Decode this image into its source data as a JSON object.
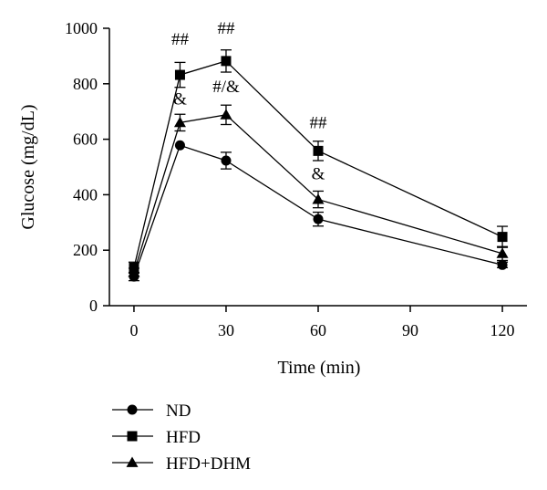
{
  "chart_data": {
    "type": "line",
    "title": "",
    "xlabel": "Time (min)",
    "ylabel": "Glucose (mg/dL)",
    "xlim": [
      -8,
      128
    ],
    "ylim": [
      0,
      1000
    ],
    "x_ticks": [
      0,
      30,
      60,
      90,
      120
    ],
    "y_ticks": [
      0,
      200,
      400,
      600,
      800,
      1000
    ],
    "grid": false,
    "legend_position": "bottom-left",
    "x": [
      0,
      15,
      30,
      60,
      120
    ],
    "series": [
      {
        "name": "ND",
        "marker": "circle",
        "values": [
          105,
          578,
          523,
          312,
          147
        ],
        "errors": [
          15,
          0,
          30,
          25,
          10
        ]
      },
      {
        "name": "HFD",
        "marker": "square",
        "values": [
          137,
          832,
          882,
          558,
          248
        ],
        "errors": [
          20,
          45,
          40,
          35,
          38
        ]
      },
      {
        "name": "HFD+DHM",
        "marker": "triangle",
        "values": [
          120,
          660,
          688,
          383,
          188
        ],
        "errors": [
          15,
          30,
          35,
          30,
          25
        ]
      }
    ],
    "annotations": [
      {
        "text": "##",
        "x": 15,
        "y": 940
      },
      {
        "text": "##",
        "x": 30,
        "y": 980
      },
      {
        "text": "##",
        "x": 60,
        "y": 640
      },
      {
        "text": "&",
        "x": 15,
        "y": 725
      },
      {
        "text": "#/&",
        "x": 30,
        "y": 770
      },
      {
        "text": "&",
        "x": 60,
        "y": 455
      }
    ]
  }
}
